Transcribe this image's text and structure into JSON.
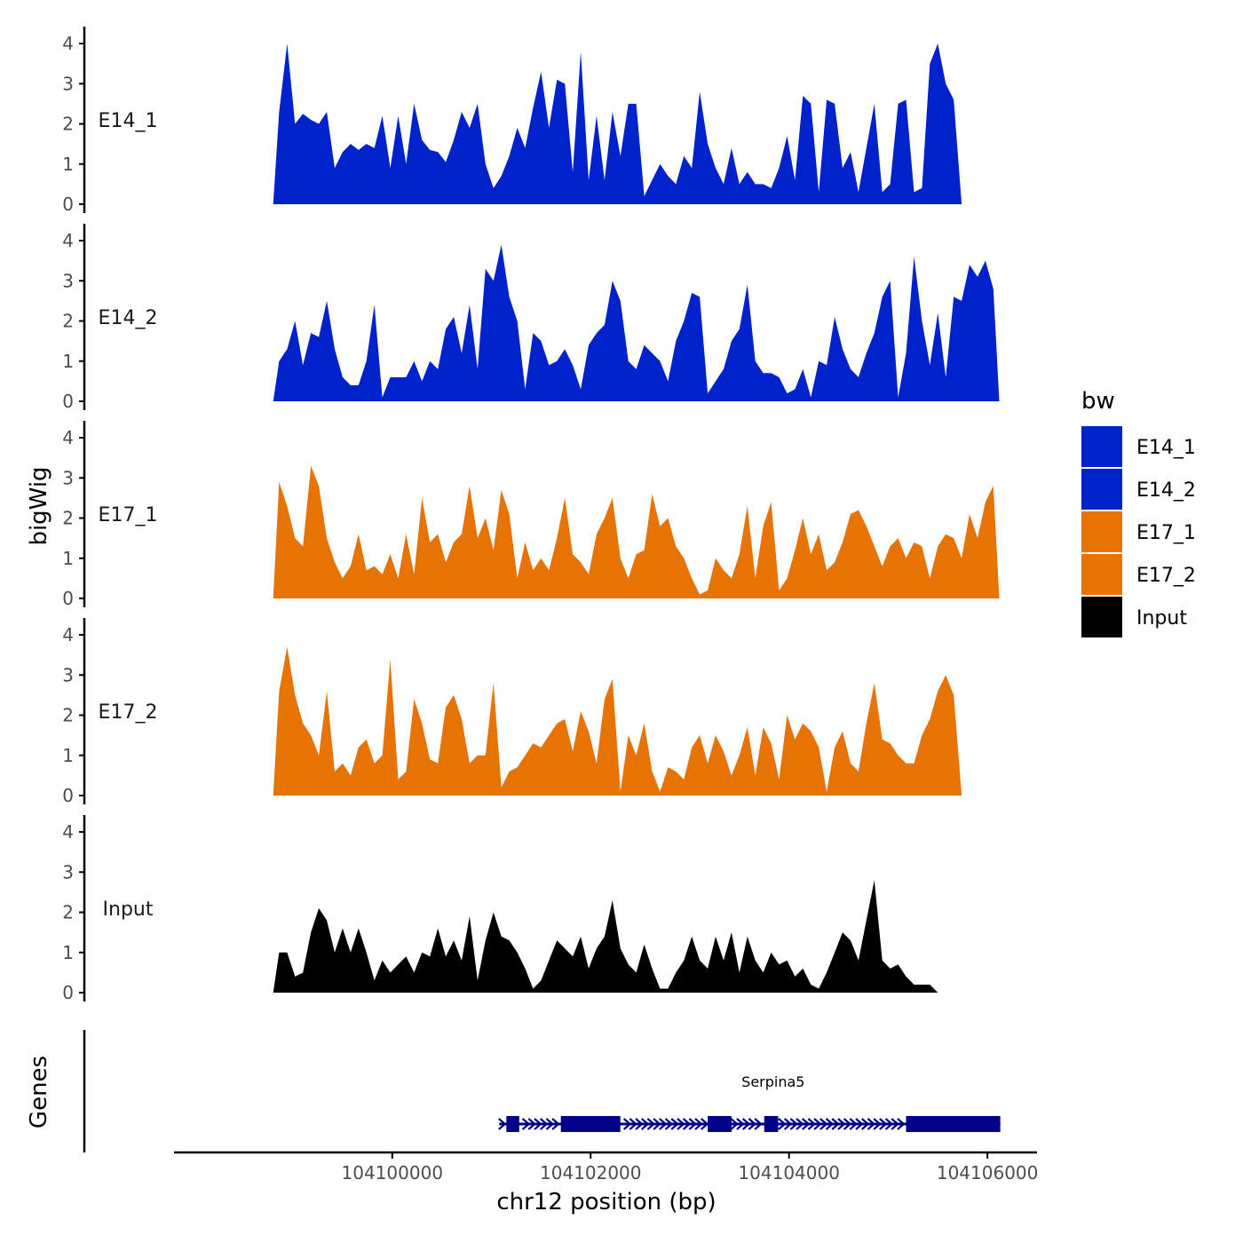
{
  "chart_data": {
    "type": "area",
    "title": "",
    "ylabel": "bigWig",
    "xlabel": "chr12 position (bp)",
    "xlim": [
      104097800,
      104106500
    ],
    "ylim": [
      0,
      4.2
    ],
    "y_ticks": [
      0,
      1,
      2,
      3,
      4
    ],
    "x_ticks": [
      104100000,
      104102000,
      104104000,
      104106000
    ],
    "x_tick_labels": [
      "104100000",
      "104102000",
      "104104000",
      "104106000"
    ],
    "legend": {
      "title": "bw",
      "placement": "right",
      "entries": [
        {
          "label": "E14_1",
          "color": "#0022CC"
        },
        {
          "label": "E14_2",
          "color": "#0022CC"
        },
        {
          "label": "E17_1",
          "color": "#E87305"
        },
        {
          "label": "E17_2",
          "color": "#E87305"
        },
        {
          "label": "Input",
          "color": "#000000"
        }
      ]
    },
    "series": [
      {
        "name": "E14_1",
        "color": "#0022CC",
        "x": [
          104098800,
          104098860,
          104098940,
          104099020,
          104099100,
          104099180,
          104099260,
          104099340,
          104099420,
          104099500,
          104099580,
          104099660,
          104099740,
          104099820,
          104099900,
          104099980,
          104100060,
          104100140,
          104100220,
          104100300,
          104100380,
          104100460,
          104100540,
          104100620,
          104100700,
          104100780,
          104100860,
          104100940,
          104101020,
          104101100,
          104101180,
          104101260,
          104101340,
          104101420,
          104101500,
          104101580,
          104101660,
          104101740,
          104101820,
          104101900,
          104101980,
          104102060,
          104102140,
          104102220,
          104102300,
          104102380,
          104102460,
          104102540,
          104102620,
          104102700,
          104102780,
          104102860,
          104102940,
          104103020,
          104103100,
          104103180,
          104103260,
          104103340,
          104103420,
          104103500,
          104103580,
          104103660,
          104103740,
          104103820,
          104103900,
          104103980,
          104104060,
          104104140,
          104104220,
          104104300,
          104104380,
          104104460,
          104104540,
          104104620,
          104104700,
          104104780,
          104104860,
          104104940,
          104105020,
          104105100,
          104105180,
          104105260,
          104105340,
          104105420,
          104105500,
          104105580,
          104105660,
          104105740,
          104105820,
          104105900,
          104105980,
          104106060,
          104106120
        ],
        "values": [
          0,
          2.3,
          4.0,
          2.0,
          2.25,
          2.1,
          2.0,
          2.3,
          0.9,
          1.3,
          1.5,
          1.35,
          1.5,
          1.4,
          2.2,
          0.9,
          2.2,
          1.0,
          2.5,
          1.6,
          1.35,
          1.3,
          1.05,
          1.6,
          2.3,
          1.9,
          2.5,
          1.0,
          0.4,
          0.7,
          1.2,
          1.9,
          1.4,
          2.4,
          3.3,
          1.9,
          3.1,
          3.0,
          0.8,
          3.8,
          0.6,
          2.2,
          0.6,
          2.3,
          1.2,
          2.5,
          2.5,
          0.2,
          0.6,
          1.0,
          0.7,
          0.5,
          1.2,
          0.9,
          2.8,
          1.5,
          0.9,
          0.5,
          1.4,
          0.5,
          0.8,
          0.5,
          0.5,
          0.4,
          0.9,
          1.7,
          0.6,
          2.7,
          2.5,
          0.3,
          2.6,
          2.5,
          0.9,
          1.3,
          0.3,
          1.4,
          2.5,
          0.3,
          0.5,
          2.5,
          2.6,
          0.3,
          0.4,
          3.5,
          4.0,
          3.0,
          2.6,
          0,
          0,
          0,
          0,
          0,
          0
        ]
      },
      {
        "name": "E14_2",
        "color": "#0022CC",
        "x": [
          104098800,
          104098860,
          104098940,
          104099020,
          104099100,
          104099180,
          104099260,
          104099340,
          104099420,
          104099500,
          104099580,
          104099660,
          104099740,
          104099820,
          104099900,
          104099980,
          104100060,
          104100140,
          104100220,
          104100300,
          104100380,
          104100460,
          104100540,
          104100620,
          104100700,
          104100780,
          104100860,
          104100940,
          104101020,
          104101100,
          104101180,
          104101260,
          104101340,
          104101420,
          104101500,
          104101580,
          104101660,
          104101740,
          104101820,
          104101900,
          104101980,
          104102060,
          104102140,
          104102220,
          104102300,
          104102380,
          104102460,
          104102540,
          104102620,
          104102700,
          104102780,
          104102860,
          104102940,
          104103020,
          104103100,
          104103180,
          104103260,
          104103340,
          104103420,
          104103500,
          104103580,
          104103660,
          104103740,
          104103820,
          104103900,
          104103980,
          104104060,
          104104140,
          104104220,
          104104300,
          104104380,
          104104460,
          104104540,
          104104620,
          104104700,
          104104780,
          104104860,
          104104940,
          104105020,
          104105100,
          104105180,
          104105260,
          104105340,
          104105420,
          104105500,
          104105580,
          104105660,
          104105740,
          104105820,
          104105900,
          104105980,
          104106060,
          104106120
        ],
        "values": [
          0,
          1.0,
          1.3,
          2.0,
          0.9,
          1.7,
          1.6,
          2.5,
          1.3,
          0.6,
          0.4,
          0.4,
          1.0,
          2.4,
          0.1,
          0.6,
          0.6,
          0.6,
          1.0,
          0.5,
          1.0,
          0.8,
          1.8,
          2.1,
          1.2,
          2.4,
          0.8,
          3.3,
          3.0,
          3.9,
          2.6,
          2.0,
          0.3,
          1.7,
          1.5,
          0.9,
          1.0,
          1.3,
          0.9,
          0.3,
          1.4,
          1.7,
          1.9,
          3.0,
          2.5,
          1.0,
          0.8,
          1.4,
          1.2,
          1.0,
          0.5,
          1.5,
          2.0,
          2.7,
          2.6,
          0.2,
          0.5,
          0.8,
          1.5,
          1.8,
          2.9,
          1.0,
          0.7,
          0.7,
          0.6,
          0.2,
          0.3,
          0.8,
          0.1,
          1.0,
          0.9,
          2.1,
          1.3,
          0.8,
          0.6,
          1.2,
          1.7,
          2.6,
          3.0,
          0.1,
          1.2,
          3.6,
          2.0,
          0.9,
          2.2,
          0.6,
          2.6,
          2.5,
          3.4,
          3.1,
          3.5,
          2.8,
          0
        ]
      },
      {
        "name": "E17_1",
        "color": "#E87305",
        "x": [
          104098800,
          104098860,
          104098940,
          104099020,
          104099100,
          104099180,
          104099260,
          104099340,
          104099420,
          104099500,
          104099580,
          104099660,
          104099740,
          104099820,
          104099900,
          104099980,
          104100060,
          104100140,
          104100220,
          104100300,
          104100380,
          104100460,
          104100540,
          104100620,
          104100700,
          104100780,
          104100860,
          104100940,
          104101020,
          104101100,
          104101180,
          104101260,
          104101340,
          104101420,
          104101500,
          104101580,
          104101660,
          104101740,
          104101820,
          104101900,
          104101980,
          104102060,
          104102140,
          104102220,
          104102300,
          104102380,
          104102460,
          104102540,
          104102620,
          104102700,
          104102780,
          104102860,
          104102940,
          104103020,
          104103100,
          104103180,
          104103260,
          104103340,
          104103420,
          104103500,
          104103580,
          104103660,
          104103740,
          104103820,
          104103900,
          104103980,
          104104060,
          104104140,
          104104220,
          104104300,
          104104380,
          104104460,
          104104540,
          104104620,
          104104700,
          104104780,
          104104860,
          104104940,
          104105020,
          104105100,
          104105180,
          104105260,
          104105340,
          104105420,
          104105500,
          104105580,
          104105660,
          104105740,
          104105820,
          104105900,
          104105980,
          104106060,
          104106120
        ],
        "values": [
          0,
          2.9,
          2.3,
          1.5,
          1.3,
          3.3,
          2.8,
          1.5,
          0.9,
          0.5,
          0.8,
          1.6,
          0.7,
          0.8,
          0.6,
          1.1,
          0.5,
          1.6,
          0.6,
          2.5,
          1.4,
          1.6,
          0.9,
          1.4,
          1.6,
          2.8,
          1.5,
          2.0,
          1.2,
          2.7,
          2.1,
          0.5,
          1.4,
          0.7,
          1.0,
          0.7,
          1.5,
          2.5,
          1.1,
          0.9,
          0.6,
          1.6,
          2.0,
          2.5,
          1.0,
          0.5,
          1.1,
          1.2,
          2.6,
          1.8,
          2.0,
          1.3,
          1.0,
          0.5,
          0.1,
          0.2,
          1.0,
          0.7,
          0.5,
          1.1,
          2.3,
          0.5,
          1.8,
          2.4,
          0.2,
          0.5,
          1.2,
          2.0,
          1.1,
          1.6,
          0.7,
          0.9,
          1.4,
          2.1,
          2.2,
          1.8,
          1.3,
          0.8,
          1.3,
          1.5,
          1.0,
          1.4,
          1.3,
          0.5,
          1.3,
          1.6,
          1.5,
          1.0,
          2.1,
          1.5,
          2.4,
          2.8,
          0
        ]
      },
      {
        "name": "E17_2",
        "color": "#E87305",
        "x": [
          104098800,
          104098860,
          104098940,
          104099020,
          104099100,
          104099180,
          104099260,
          104099340,
          104099420,
          104099500,
          104099580,
          104099660,
          104099740,
          104099820,
          104099900,
          104099980,
          104100060,
          104100140,
          104100220,
          104100300,
          104100380,
          104100460,
          104100540,
          104100620,
          104100700,
          104100780,
          104100860,
          104100940,
          104101020,
          104101100,
          104101180,
          104101260,
          104101340,
          104101420,
          104101500,
          104101580,
          104101660,
          104101740,
          104101820,
          104101900,
          104101980,
          104102060,
          104102140,
          104102220,
          104102300,
          104102380,
          104102460,
          104102540,
          104102620,
          104102700,
          104102780,
          104102860,
          104102940,
          104103020,
          104103100,
          104103180,
          104103260,
          104103340,
          104103420,
          104103500,
          104103580,
          104103660,
          104103740,
          104103820,
          104103900,
          104103980,
          104104060,
          104104140,
          104104220,
          104104300,
          104104380,
          104104460,
          104104540,
          104104620,
          104104700,
          104104780,
          104104860,
          104104940,
          104105020,
          104105100,
          104105180,
          104105260,
          104105340,
          104105420,
          104105500,
          104105580,
          104105660,
          104105740,
          104105820,
          104105900,
          104105980,
          104106060,
          104106120
        ],
        "values": [
          0,
          2.6,
          3.7,
          2.5,
          1.8,
          1.5,
          1.0,
          2.6,
          0.6,
          0.8,
          0.5,
          1.2,
          1.4,
          0.8,
          1.0,
          3.4,
          0.4,
          0.6,
          2.4,
          1.8,
          0.9,
          0.8,
          2.2,
          2.5,
          1.9,
          0.8,
          1.0,
          1.0,
          2.8,
          0.2,
          0.6,
          0.7,
          1.0,
          1.3,
          1.2,
          1.5,
          1.8,
          1.9,
          1.1,
          2.1,
          1.6,
          0.8,
          2.4,
          2.9,
          0.1,
          1.5,
          1.0,
          1.8,
          0.6,
          0.1,
          0.7,
          0.6,
          0.4,
          1.2,
          1.5,
          0.8,
          1.5,
          1.1,
          0.5,
          1.0,
          1.7,
          0.5,
          1.7,
          1.3,
          0.4,
          2.0,
          1.4,
          1.8,
          1.6,
          1.2,
          0.1,
          1.2,
          1.6,
          0.8,
          0.6,
          1.8,
          2.8,
          1.4,
          1.3,
          1.0,
          0.8,
          0.8,
          1.5,
          1.9,
          2.6,
          3.0,
          2.5,
          0,
          0,
          0,
          0,
          0,
          0
        ]
      },
      {
        "name": "Input",
        "color": "#000000",
        "x": [
          104098800,
          104098860,
          104098940,
          104099020,
          104099100,
          104099180,
          104099260,
          104099340,
          104099420,
          104099500,
          104099580,
          104099660,
          104099740,
          104099820,
          104099900,
          104099980,
          104100060,
          104100140,
          104100220,
          104100300,
          104100380,
          104100460,
          104100540,
          104100620,
          104100700,
          104100780,
          104100860,
          104100940,
          104101020,
          104101100,
          104101180,
          104101260,
          104101340,
          104101420,
          104101500,
          104101580,
          104101660,
          104101740,
          104101820,
          104101900,
          104101980,
          104102060,
          104102140,
          104102220,
          104102300,
          104102380,
          104102460,
          104102540,
          104102620,
          104102700,
          104102780,
          104102860,
          104102940,
          104103020,
          104103100,
          104103180,
          104103260,
          104103340,
          104103420,
          104103500,
          104103580,
          104103660,
          104103740,
          104103820,
          104103900,
          104103980,
          104104060,
          104104140,
          104104220,
          104104300,
          104104380,
          104104460,
          104104540,
          104104620,
          104104700,
          104104780,
          104104860,
          104104940,
          104105020,
          104105100,
          104105180,
          104105260,
          104105340,
          104105420,
          104105500,
          104105580,
          104105660,
          104105740,
          104105820,
          104105900,
          104105980,
          104106060,
          104106120
        ],
        "values": [
          0,
          1.0,
          1.0,
          0.4,
          0.5,
          1.5,
          2.1,
          1.8,
          1.0,
          1.6,
          1.0,
          1.6,
          1.0,
          0.3,
          0.8,
          0.5,
          0.7,
          0.9,
          0.5,
          1.0,
          0.9,
          1.6,
          0.9,
          1.3,
          0.8,
          1.9,
          0.3,
          1.3,
          2.0,
          1.4,
          1.3,
          1.0,
          0.6,
          0.1,
          0.3,
          0.8,
          1.3,
          1.1,
          0.9,
          1.4,
          0.6,
          1.1,
          1.4,
          2.3,
          1.1,
          0.7,
          0.5,
          1.2,
          0.6,
          0.1,
          0.1,
          0.5,
          0.8,
          1.4,
          0.8,
          0.6,
          1.4,
          0.8,
          1.5,
          0.5,
          1.4,
          0.8,
          0.5,
          1.0,
          0.7,
          0.8,
          0.4,
          0.6,
          0.2,
          0.1,
          0.5,
          1.0,
          1.5,
          1.3,
          0.8,
          1.8,
          2.8,
          0.8,
          0.6,
          0.7,
          0.4,
          0.2,
          0.2,
          0.2,
          0,
          0,
          0,
          0,
          0,
          0,
          0,
          0,
          0
        ]
      }
    ],
    "gene_track": {
      "label": "Genes",
      "gene_name": "Serpina5",
      "color": "#00008B",
      "start": 104101150,
      "end": 104106130,
      "exons": [
        [
          104101150,
          104101280
        ],
        [
          104101700,
          104102300
        ],
        [
          104103180,
          104103420
        ],
        [
          104103750,
          104103890
        ],
        [
          104105180,
          104106130
        ]
      ],
      "strand": "+"
    }
  }
}
